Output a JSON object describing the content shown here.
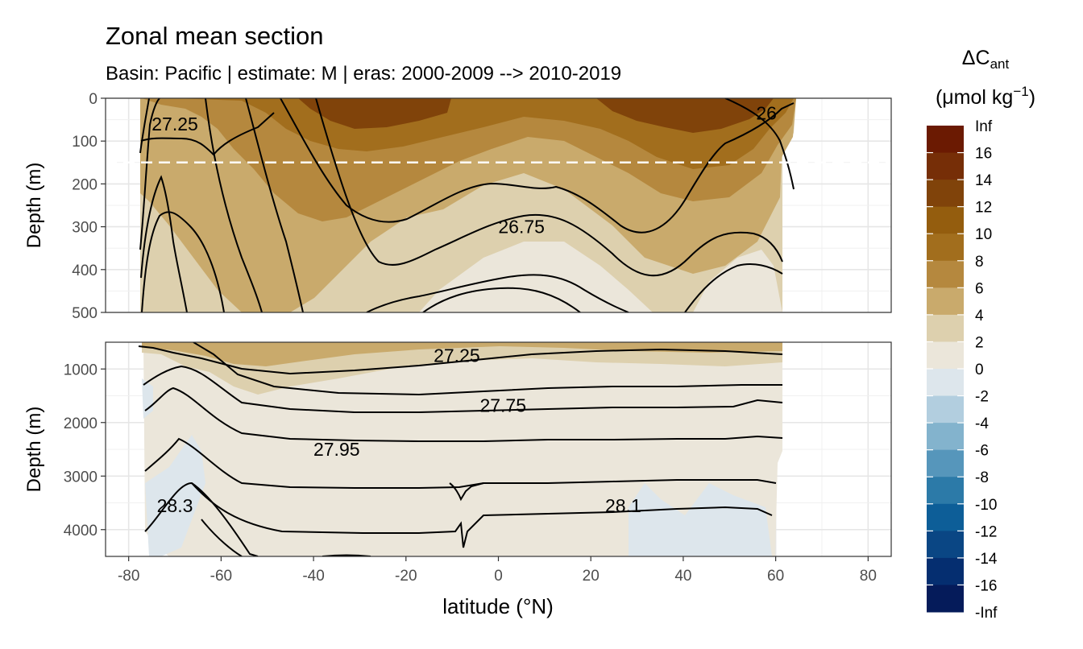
{
  "chart_data": {
    "type": "contour-section",
    "title": "Zonal mean section",
    "subtitle": "Basin: Pacific | estimate: M  | eras: 2000-2009 --> 2010-2019",
    "xlabel": "latitude (°N)",
    "ylabel": "Depth (m)",
    "x_ticks": [
      -80,
      -60,
      -40,
      -20,
      0,
      20,
      40,
      60,
      80
    ],
    "xlim": [
      -85,
      85
    ],
    "data_extent_lat": [
      -77,
      62
    ],
    "reference_depth_m": 150,
    "panels": [
      {
        "name": "upper",
        "ylim": [
          0,
          500
        ],
        "y_ticks": [
          0,
          100,
          200,
          300,
          400,
          500
        ],
        "contour_labels": [
          {
            "text": "26",
            "lat": 58,
            "depth": 35
          },
          {
            "text": "27.25",
            "lat": -70,
            "depth": 60
          },
          {
            "text": "26.75",
            "lat": 5,
            "depth": 300
          }
        ]
      },
      {
        "name": "lower",
        "ylim": [
          500,
          4500
        ],
        "y_ticks": [
          1000,
          2000,
          3000,
          4000
        ],
        "contour_labels": [
          {
            "text": "27.25",
            "lat": -9,
            "depth": 750
          },
          {
            "text": "27.75",
            "lat": 1,
            "depth": 1680
          },
          {
            "text": "27.95",
            "lat": -35,
            "depth": 2500
          },
          {
            "text": "28.3",
            "lat": -70,
            "depth": 3550
          },
          {
            "text": "28.1",
            "lat": 27,
            "depth": 3550
          }
        ]
      }
    ],
    "legend": {
      "title": "ΔC",
      "title_sub": "ant",
      "units_prefix": "(μmol kg",
      "units_sup": "−1",
      "units_suffix": ")",
      "labels": [
        "Inf",
        "16",
        "14",
        "12",
        "10",
        "8",
        "6",
        "4",
        "2",
        "0",
        "-2",
        "-4",
        "-6",
        "-8",
        "-10",
        "-12",
        "-14",
        "-16",
        "-Inf"
      ],
      "colors": [
        "#6b1a02",
        "#762e07",
        "#80430a",
        "#945d0e",
        "#a26e1d",
        "#b5883e",
        "#c9aa6c",
        "#ddd0ae",
        "#ebe6da",
        "#dde6ec",
        "#b2cedf",
        "#83b3cd",
        "#5696bb",
        "#2c7aa8",
        "#0d5e98",
        "#0a4684",
        "#052e70",
        "#051b5a"
      ]
    }
  }
}
